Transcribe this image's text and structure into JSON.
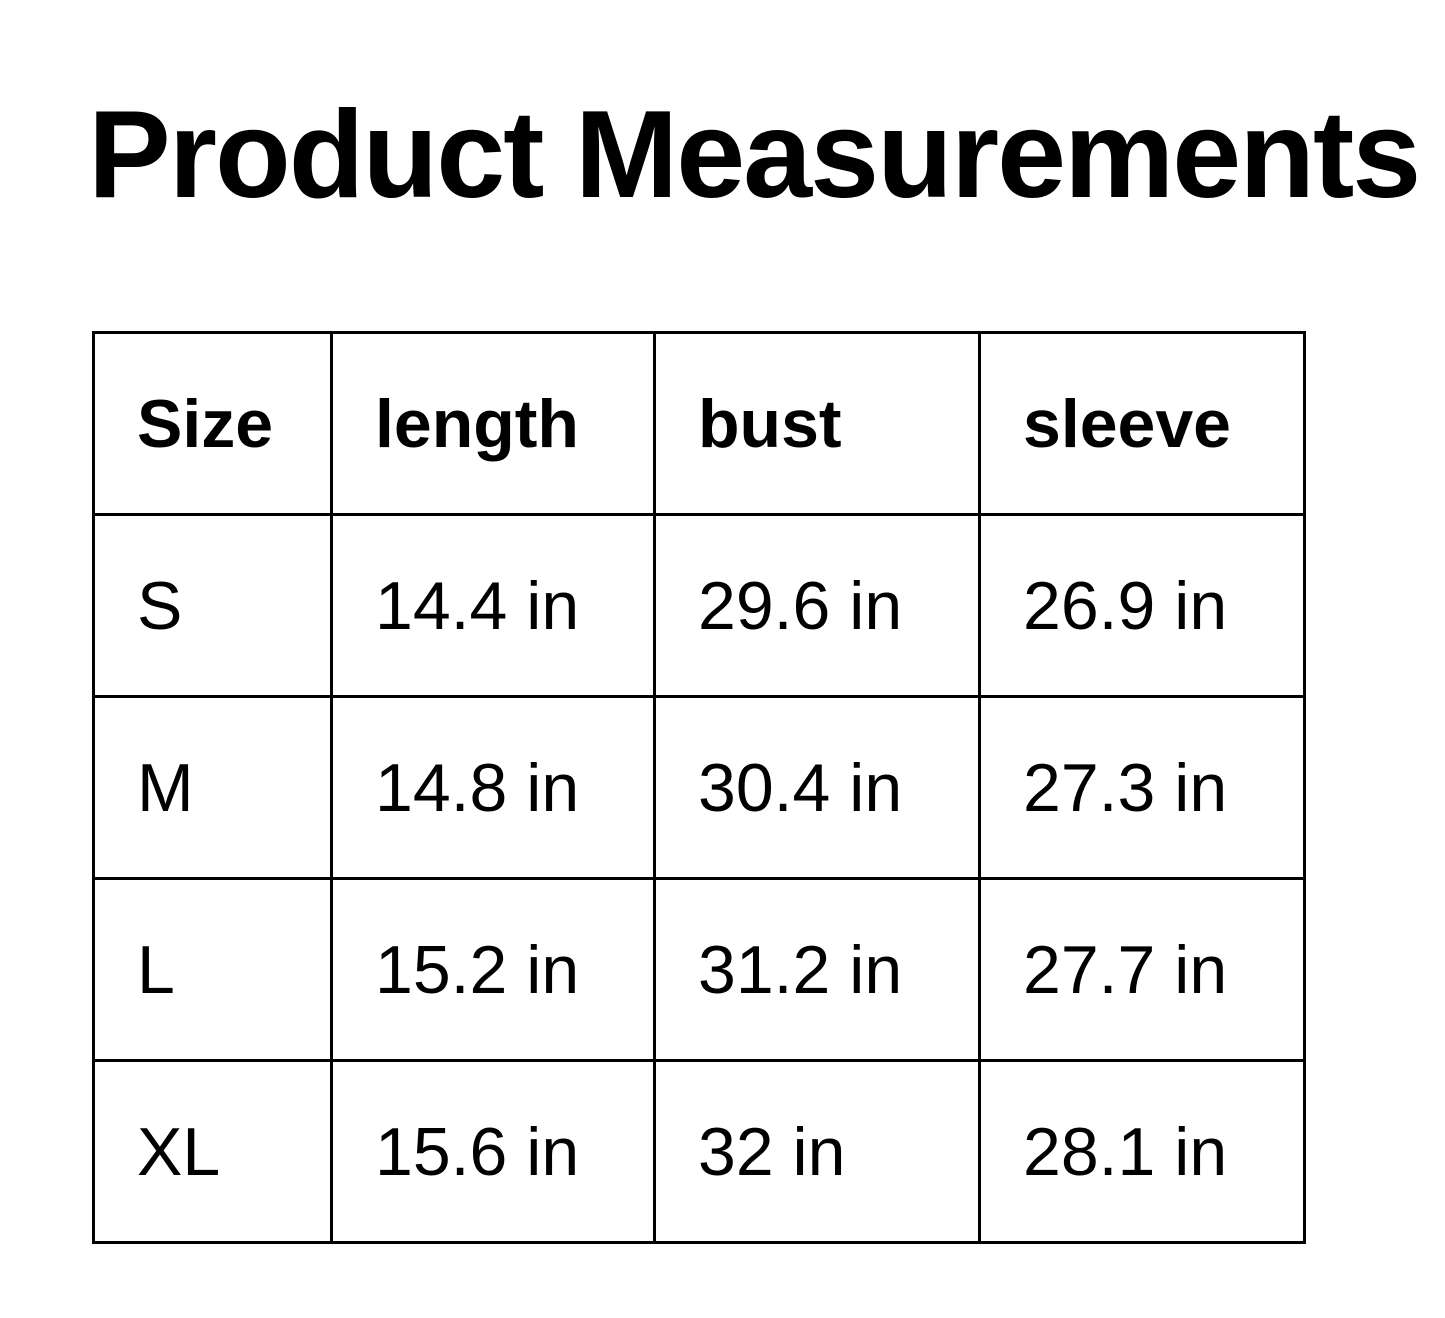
{
  "page": {
    "title": "Product Measurements"
  },
  "colors": {
    "background": "#ffffff",
    "text": "#000000",
    "border": "#000000"
  },
  "table": {
    "unit": "in",
    "headers": [
      "Size",
      "length",
      "bust",
      "sleeve"
    ],
    "rows": [
      {
        "size": "S",
        "length": "14.4 in",
        "bust": "29.6 in",
        "sleeve": "26.9 in"
      },
      {
        "size": "M",
        "length": "14.8 in",
        "bust": "30.4 in",
        "sleeve": "27.3 in"
      },
      {
        "size": "L",
        "length": "15.2 in",
        "bust": "31.2 in",
        "sleeve": "27.7 in"
      },
      {
        "size": "XL",
        "length": "15.6 in",
        "bust": "32 in",
        "sleeve": "28.1 in"
      }
    ]
  }
}
